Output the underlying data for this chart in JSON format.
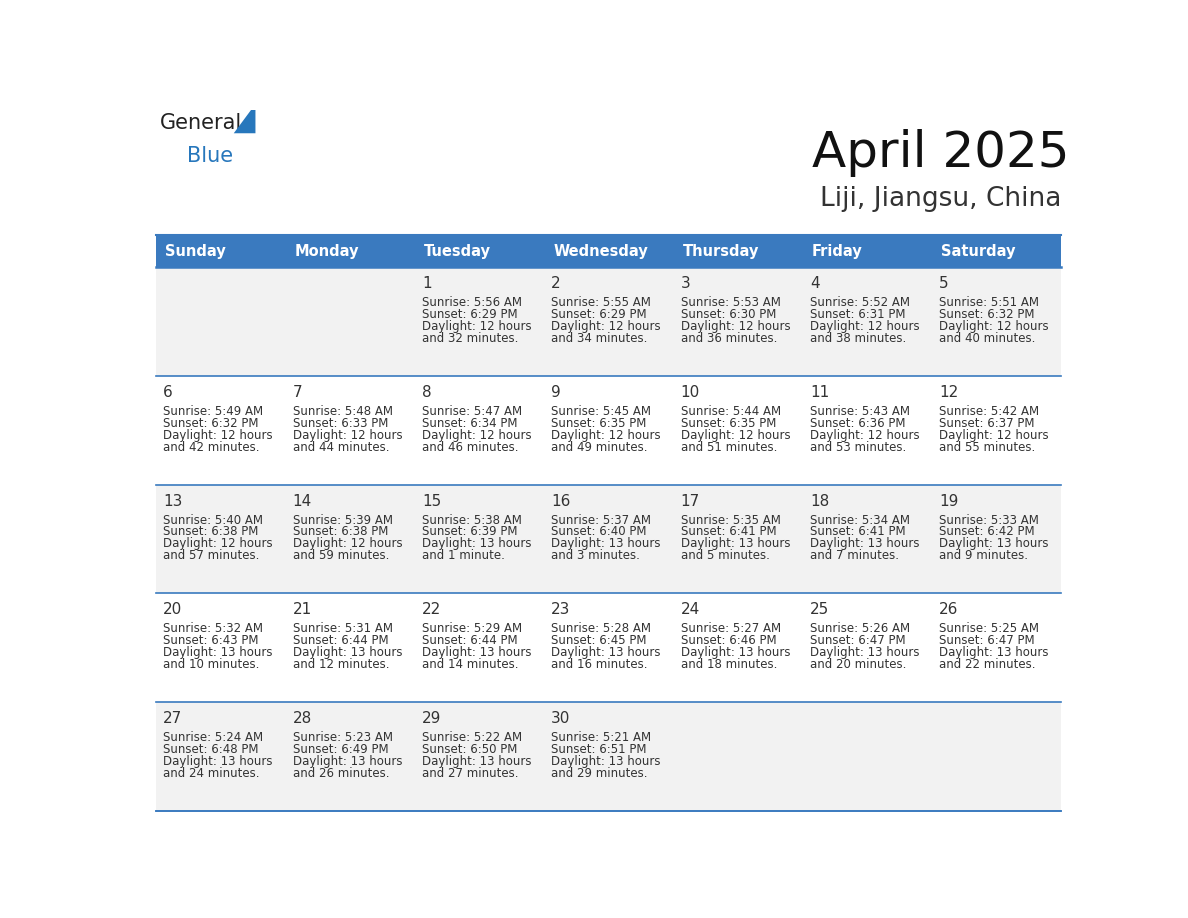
{
  "title": "April 2025",
  "subtitle": "Liji, Jiangsu, China",
  "header_color": "#3a7abf",
  "header_text_color": "#ffffff",
  "cell_bg_even": "#f2f2f2",
  "cell_bg_odd": "#ffffff",
  "border_color": "#3a7abf",
  "day_names": [
    "Sunday",
    "Monday",
    "Tuesday",
    "Wednesday",
    "Thursday",
    "Friday",
    "Saturday"
  ],
  "text_color": "#333333",
  "days": [
    {
      "date": 1,
      "col": 2,
      "row": 0,
      "sunrise": "5:56 AM",
      "sunset": "6:29 PM",
      "daylight_line1": "Daylight: 12 hours",
      "daylight_line2": "and 32 minutes."
    },
    {
      "date": 2,
      "col": 3,
      "row": 0,
      "sunrise": "5:55 AM",
      "sunset": "6:29 PM",
      "daylight_line1": "Daylight: 12 hours",
      "daylight_line2": "and 34 minutes."
    },
    {
      "date": 3,
      "col": 4,
      "row": 0,
      "sunrise": "5:53 AM",
      "sunset": "6:30 PM",
      "daylight_line1": "Daylight: 12 hours",
      "daylight_line2": "and 36 minutes."
    },
    {
      "date": 4,
      "col": 5,
      "row": 0,
      "sunrise": "5:52 AM",
      "sunset": "6:31 PM",
      "daylight_line1": "Daylight: 12 hours",
      "daylight_line2": "and 38 minutes."
    },
    {
      "date": 5,
      "col": 6,
      "row": 0,
      "sunrise": "5:51 AM",
      "sunset": "6:32 PM",
      "daylight_line1": "Daylight: 12 hours",
      "daylight_line2": "and 40 minutes."
    },
    {
      "date": 6,
      "col": 0,
      "row": 1,
      "sunrise": "5:49 AM",
      "sunset": "6:32 PM",
      "daylight_line1": "Daylight: 12 hours",
      "daylight_line2": "and 42 minutes."
    },
    {
      "date": 7,
      "col": 1,
      "row": 1,
      "sunrise": "5:48 AM",
      "sunset": "6:33 PM",
      "daylight_line1": "Daylight: 12 hours",
      "daylight_line2": "and 44 minutes."
    },
    {
      "date": 8,
      "col": 2,
      "row": 1,
      "sunrise": "5:47 AM",
      "sunset": "6:34 PM",
      "daylight_line1": "Daylight: 12 hours",
      "daylight_line2": "and 46 minutes."
    },
    {
      "date": 9,
      "col": 3,
      "row": 1,
      "sunrise": "5:45 AM",
      "sunset": "6:35 PM",
      "daylight_line1": "Daylight: 12 hours",
      "daylight_line2": "and 49 minutes."
    },
    {
      "date": 10,
      "col": 4,
      "row": 1,
      "sunrise": "5:44 AM",
      "sunset": "6:35 PM",
      "daylight_line1": "Daylight: 12 hours",
      "daylight_line2": "and 51 minutes."
    },
    {
      "date": 11,
      "col": 5,
      "row": 1,
      "sunrise": "5:43 AM",
      "sunset": "6:36 PM",
      "daylight_line1": "Daylight: 12 hours",
      "daylight_line2": "and 53 minutes."
    },
    {
      "date": 12,
      "col": 6,
      "row": 1,
      "sunrise": "5:42 AM",
      "sunset": "6:37 PM",
      "daylight_line1": "Daylight: 12 hours",
      "daylight_line2": "and 55 minutes."
    },
    {
      "date": 13,
      "col": 0,
      "row": 2,
      "sunrise": "5:40 AM",
      "sunset": "6:38 PM",
      "daylight_line1": "Daylight: 12 hours",
      "daylight_line2": "and 57 minutes."
    },
    {
      "date": 14,
      "col": 1,
      "row": 2,
      "sunrise": "5:39 AM",
      "sunset": "6:38 PM",
      "daylight_line1": "Daylight: 12 hours",
      "daylight_line2": "and 59 minutes."
    },
    {
      "date": 15,
      "col": 2,
      "row": 2,
      "sunrise": "5:38 AM",
      "sunset": "6:39 PM",
      "daylight_line1": "Daylight: 13 hours",
      "daylight_line2": "and 1 minute."
    },
    {
      "date": 16,
      "col": 3,
      "row": 2,
      "sunrise": "5:37 AM",
      "sunset": "6:40 PM",
      "daylight_line1": "Daylight: 13 hours",
      "daylight_line2": "and 3 minutes."
    },
    {
      "date": 17,
      "col": 4,
      "row": 2,
      "sunrise": "5:35 AM",
      "sunset": "6:41 PM",
      "daylight_line1": "Daylight: 13 hours",
      "daylight_line2": "and 5 minutes."
    },
    {
      "date": 18,
      "col": 5,
      "row": 2,
      "sunrise": "5:34 AM",
      "sunset": "6:41 PM",
      "daylight_line1": "Daylight: 13 hours",
      "daylight_line2": "and 7 minutes."
    },
    {
      "date": 19,
      "col": 6,
      "row": 2,
      "sunrise": "5:33 AM",
      "sunset": "6:42 PM",
      "daylight_line1": "Daylight: 13 hours",
      "daylight_line2": "and 9 minutes."
    },
    {
      "date": 20,
      "col": 0,
      "row": 3,
      "sunrise": "5:32 AM",
      "sunset": "6:43 PM",
      "daylight_line1": "Daylight: 13 hours",
      "daylight_line2": "and 10 minutes."
    },
    {
      "date": 21,
      "col": 1,
      "row": 3,
      "sunrise": "5:31 AM",
      "sunset": "6:44 PM",
      "daylight_line1": "Daylight: 13 hours",
      "daylight_line2": "and 12 minutes."
    },
    {
      "date": 22,
      "col": 2,
      "row": 3,
      "sunrise": "5:29 AM",
      "sunset": "6:44 PM",
      "daylight_line1": "Daylight: 13 hours",
      "daylight_line2": "and 14 minutes."
    },
    {
      "date": 23,
      "col": 3,
      "row": 3,
      "sunrise": "5:28 AM",
      "sunset": "6:45 PM",
      "daylight_line1": "Daylight: 13 hours",
      "daylight_line2": "and 16 minutes."
    },
    {
      "date": 24,
      "col": 4,
      "row": 3,
      "sunrise": "5:27 AM",
      "sunset": "6:46 PM",
      "daylight_line1": "Daylight: 13 hours",
      "daylight_line2": "and 18 minutes."
    },
    {
      "date": 25,
      "col": 5,
      "row": 3,
      "sunrise": "5:26 AM",
      "sunset": "6:47 PM",
      "daylight_line1": "Daylight: 13 hours",
      "daylight_line2": "and 20 minutes."
    },
    {
      "date": 26,
      "col": 6,
      "row": 3,
      "sunrise": "5:25 AM",
      "sunset": "6:47 PM",
      "daylight_line1": "Daylight: 13 hours",
      "daylight_line2": "and 22 minutes."
    },
    {
      "date": 27,
      "col": 0,
      "row": 4,
      "sunrise": "5:24 AM",
      "sunset": "6:48 PM",
      "daylight_line1": "Daylight: 13 hours",
      "daylight_line2": "and 24 minutes."
    },
    {
      "date": 28,
      "col": 1,
      "row": 4,
      "sunrise": "5:23 AM",
      "sunset": "6:49 PM",
      "daylight_line1": "Daylight: 13 hours",
      "daylight_line2": "and 26 minutes."
    },
    {
      "date": 29,
      "col": 2,
      "row": 4,
      "sunrise": "5:22 AM",
      "sunset": "6:50 PM",
      "daylight_line1": "Daylight: 13 hours",
      "daylight_line2": "and 27 minutes."
    },
    {
      "date": 30,
      "col": 3,
      "row": 4,
      "sunrise": "5:21 AM",
      "sunset": "6:51 PM",
      "daylight_line1": "Daylight: 13 hours",
      "daylight_line2": "and 29 minutes."
    }
  ],
  "logo_general_color": "#222222",
  "logo_blue_color": "#2777bc",
  "logo_triangle_color": "#2777bc",
  "title_fontsize": 36,
  "subtitle_fontsize": 19,
  "header_fontsize": 10.5,
  "date_fontsize": 11,
  "cell_fontsize": 8.5
}
